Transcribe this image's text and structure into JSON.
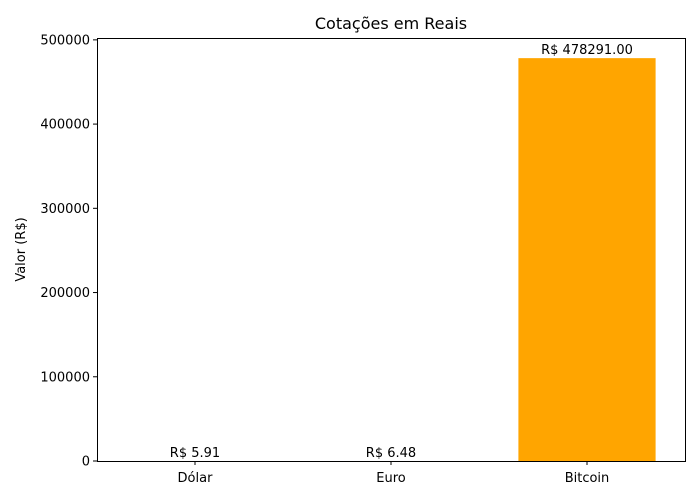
{
  "chart_data": {
    "type": "bar",
    "title": "Cotações em Reais",
    "xlabel": "",
    "ylabel": "Valor (R$)",
    "categories": [
      "Dólar",
      "Euro",
      "Bitcoin"
    ],
    "values": [
      5.91,
      6.48,
      478291.0
    ],
    "value_labels": [
      "R$ 5.91",
      "R$ 6.48",
      "R$ 478291.00"
    ],
    "colors": [
      "#008000",
      "#0000ff",
      "#ffa500"
    ],
    "ylim": [
      0,
      502205.55
    ],
    "yticks": [
      0,
      100000,
      200000,
      300000,
      400000,
      500000
    ],
    "ytick_labels": [
      "0",
      "100000",
      "200000",
      "300000",
      "400000",
      "500000"
    ],
    "grid": false,
    "legend": "none"
  }
}
